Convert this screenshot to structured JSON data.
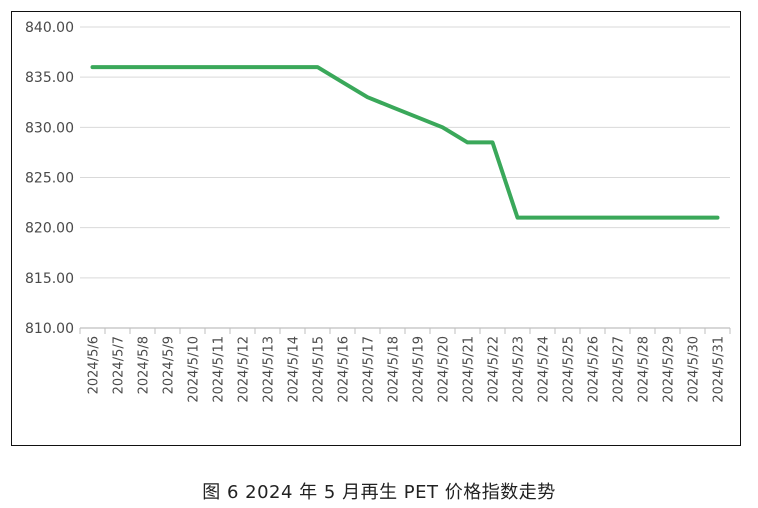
{
  "caption": "图 6  2024 年 5 月再生 PET 价格指数走势",
  "colors": {
    "line": "#3aa85a",
    "grid": "#d9d9d9",
    "axis": "#bfbfbf"
  },
  "chart_data": {
    "type": "line",
    "categories": [
      "2024/5/6",
      "2024/5/7",
      "2024/5/8",
      "2024/5/9",
      "2024/5/10",
      "2024/5/11",
      "2024/5/12",
      "2024/5/13",
      "2024/5/14",
      "2024/5/15",
      "2024/5/16",
      "2024/5/17",
      "2024/5/18",
      "2024/5/19",
      "2024/5/20",
      "2024/5/21",
      "2024/5/22",
      "2024/5/23",
      "2024/5/24",
      "2024/5/25",
      "2024/5/26",
      "2024/5/27",
      "2024/5/28",
      "2024/5/29",
      "2024/5/30",
      "2024/5/31"
    ],
    "series": [
      {
        "values": [
          836.0,
          836.0,
          836.0,
          836.0,
          836.0,
          836.0,
          836.0,
          836.0,
          836.0,
          836.0,
          834.5,
          833.0,
          832.0,
          831.0,
          830.0,
          828.5,
          828.5,
          821.0,
          821.0,
          821.0,
          821.0,
          821.0,
          821.0,
          821.0,
          821.0,
          821.0
        ]
      }
    ],
    "y_ticks": [
      "840.00",
      "835.00",
      "830.00",
      "825.00",
      "820.00",
      "815.00",
      "810.00"
    ],
    "ylim": [
      810,
      840
    ],
    "title": "",
    "xlabel": "",
    "ylabel": "",
    "grid": "horizontal",
    "legend": "none"
  }
}
